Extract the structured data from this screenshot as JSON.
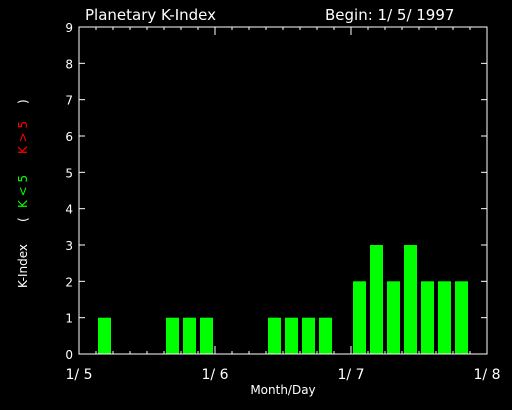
{
  "title": "Planetary K-Index",
  "begin_label": "Begin: 1/ 5/ 1997",
  "ylabel": {
    "main": "K-Index",
    "paren_open": "(",
    "green_part": "K < 5",
    "red_part": "K > 5",
    "paren_close": ")"
  },
  "xlabel": "Month/Day",
  "colors": {
    "background": "#000000",
    "axis": "#ffffff",
    "bar_low": "#00ff00",
    "bar_high": "#ff0000",
    "text": "#ffffff"
  },
  "chart_data": {
    "type": "bar",
    "title": "Planetary K-Index",
    "xlabel": "Month/Day",
    "ylabel": "K-Index",
    "ylim": [
      0,
      9
    ],
    "xlim_days": [
      0,
      3
    ],
    "xticks": [
      "1/ 5",
      "1/ 6",
      "1/ 7",
      "1/ 8"
    ],
    "yticks": [
      "0",
      "1",
      "2",
      "3",
      "4",
      "5",
      "6",
      "7",
      "8",
      "9"
    ],
    "bar_interval_hours": 3,
    "values": [
      null,
      1,
      null,
      null,
      null,
      1,
      1,
      1,
      null,
      null,
      null,
      1,
      1,
      1,
      1,
      null,
      2,
      3,
      2,
      3,
      2,
      2,
      2,
      null
    ],
    "threshold": 5
  }
}
